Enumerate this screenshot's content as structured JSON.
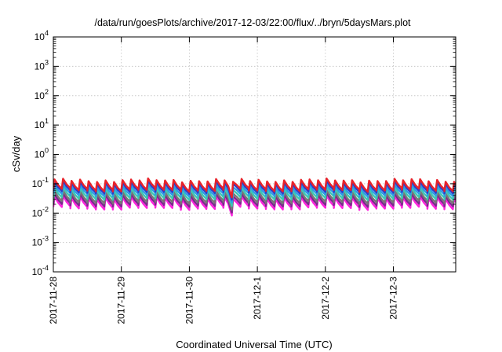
{
  "chart_data": {
    "type": "line",
    "title": "/data/run/goesPlots/archive/2017-12-03/22:00/flux/../bryn/5daysMars.plot",
    "xlabel": "Coordinated Universal Time (UTC)",
    "ylabel": "cSv/day",
    "x_range": [
      "2017-11-28T00:00",
      "2017-12-03T22:00"
    ],
    "x_tick_labels": [
      "2017-11-28",
      "2017-11-29",
      "2017-11-30",
      "2017-12-1",
      "2017-12-2",
      "2017-12-3"
    ],
    "y_scale": "log",
    "ylim": [
      0.0001,
      10000
    ],
    "y_tick_labels": [
      {
        "base": "10",
        "exp": "4"
      },
      {
        "base": "10",
        "exp": "3"
      },
      {
        "base": "10",
        "exp": "2"
      },
      {
        "base": "10",
        "exp": "1"
      },
      {
        "base": "10",
        "exp": "0"
      },
      {
        "base": "10",
        "exp": "-1"
      },
      {
        "base": "10",
        "exp": "-2"
      },
      {
        "base": "10",
        "exp": "-3"
      },
      {
        "base": "10",
        "exp": "-4"
      }
    ],
    "grid": true,
    "legend": "none",
    "pattern": {
      "period_hours": 3,
      "jump_fraction_of_period": 0.14
    },
    "series": [
      {
        "color": "#e8222a",
        "peak": 0.13,
        "trough": 0.062
      },
      {
        "color": "#2e3cc8",
        "peak": 0.11,
        "trough": 0.052
      },
      {
        "color": "#2e9be6",
        "peak": 0.085,
        "trough": 0.042
      },
      {
        "color": "#3cc8b4",
        "peak": 0.068,
        "trough": 0.032
      },
      {
        "color": "#777777",
        "peak": 0.052,
        "trough": 0.024
      },
      {
        "color": "#7a2a8c",
        "peak": 0.042,
        "trough": 0.019
      },
      {
        "color": "#ff22dd",
        "peak": 0.034,
        "trough": 0.015
      }
    ],
    "dips": [
      {
        "time": "2017-11-30T15:00",
        "factor": 0.55
      }
    ]
  }
}
